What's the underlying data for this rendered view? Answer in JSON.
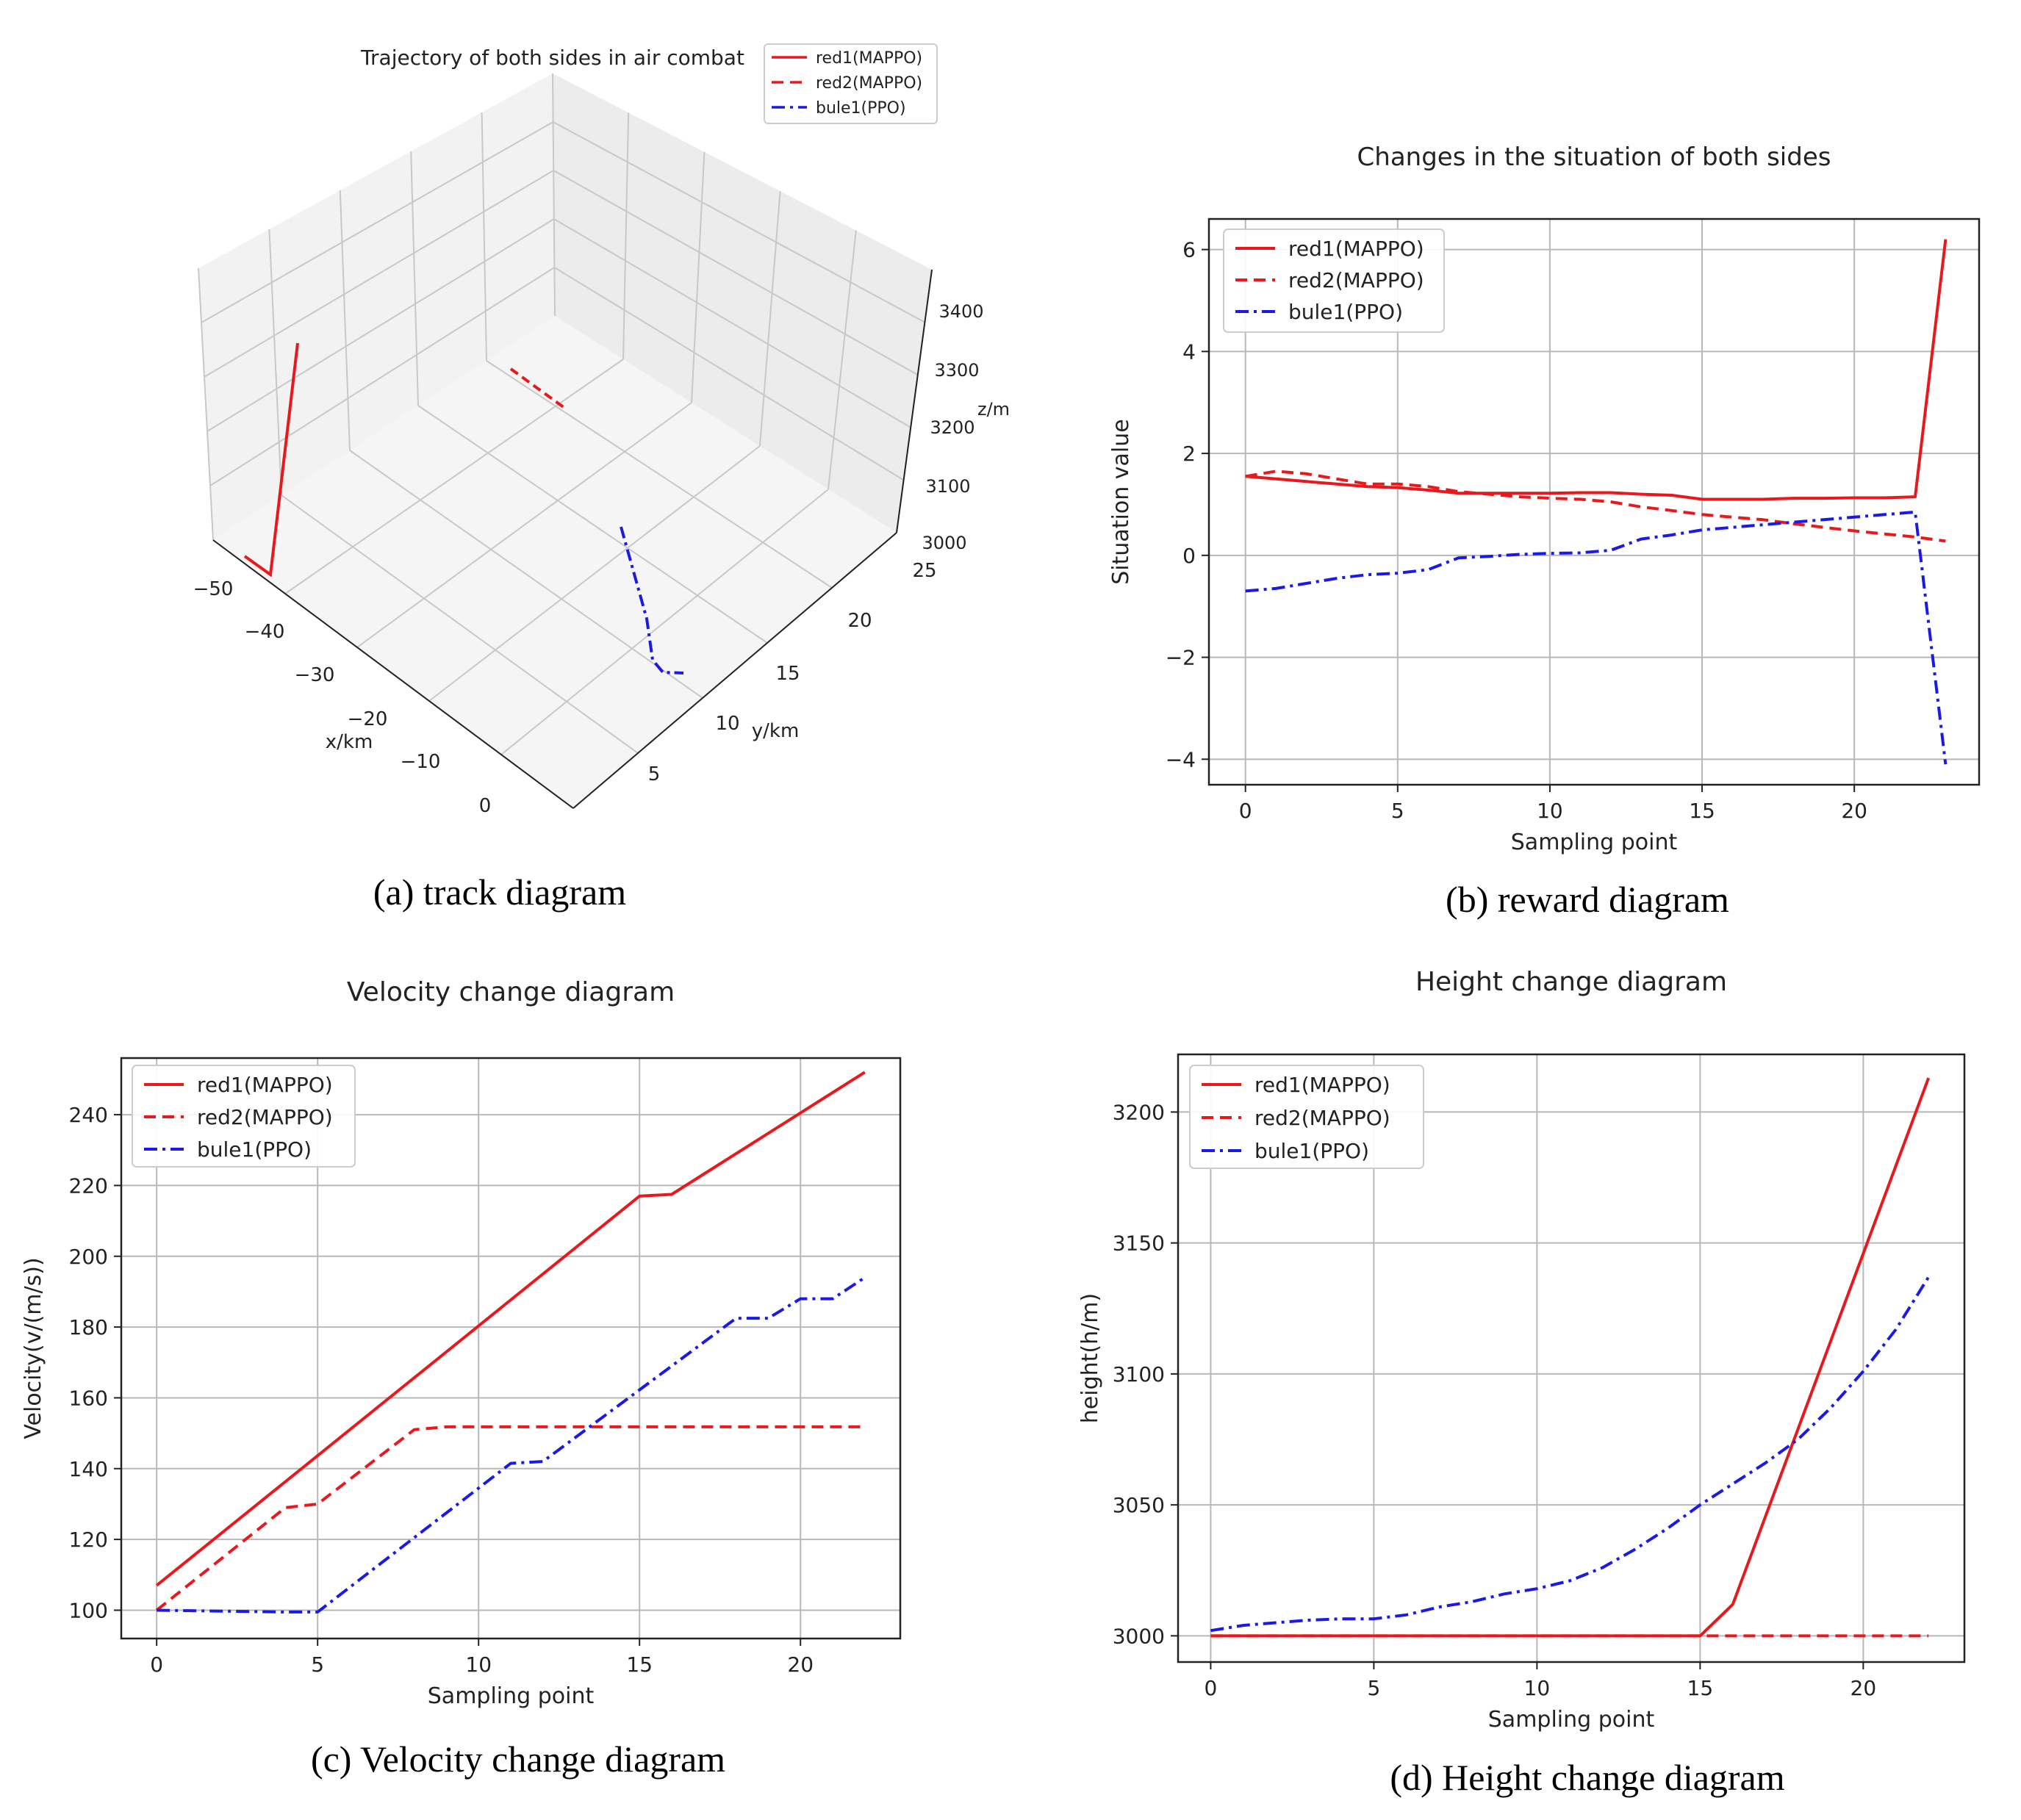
{
  "captions": {
    "a": "(a) track diagram",
    "b": "(b) reward diagram",
    "c": "(c) Velocity change diagram",
    "d": "(d) Height change diagram"
  },
  "colors": {
    "red": "#e8191c",
    "blue": "#1a1ae6",
    "grid": "#b8b8b8",
    "axis": "#222222"
  },
  "chart_data": [
    {
      "id": "a",
      "type": "line",
      "projection": "3d",
      "title": "Trajectory of both sides in air combat",
      "xlabel": "x/km",
      "ylabel": "y/km",
      "zlabel": "z/m",
      "xticks": [
        "−50",
        "−40",
        "−30",
        "−20",
        "−10",
        "0"
      ],
      "yticks": [
        "5",
        "10",
        "15",
        "20",
        "25"
      ],
      "zticks": [
        "3000",
        "3100",
        "3200",
        "3300",
        "3400"
      ],
      "legend": [
        "red1(MAPPO)",
        "red2(MAPPO)",
        "bule1(PPO)"
      ]
    },
    {
      "id": "b",
      "type": "line",
      "title": "Changes in the situation of both sides",
      "xlabel": "Sampling point",
      "ylabel": "Situation value",
      "xlim": [
        -1.2,
        24.1
      ],
      "ylim": [
        -4.5,
        6.6
      ],
      "xticks": [
        0,
        5,
        10,
        15,
        20
      ],
      "yticks": [
        -4,
        -2,
        0,
        2,
        4,
        6
      ],
      "legend_position": "upper-left",
      "series": [
        {
          "name": "red1(MAPPO)",
          "style": "solid",
          "color": "#e8191c",
          "x": [
            0,
            1,
            2,
            3,
            4,
            5,
            6,
            7,
            8,
            9,
            10,
            11,
            12,
            13,
            14,
            15,
            16,
            17,
            18,
            19,
            20,
            21,
            22,
            23
          ],
          "y": [
            1.55,
            1.5,
            1.45,
            1.4,
            1.35,
            1.33,
            1.28,
            1.22,
            1.22,
            1.22,
            1.22,
            1.23,
            1.23,
            1.2,
            1.18,
            1.1,
            1.1,
            1.1,
            1.12,
            1.12,
            1.13,
            1.13,
            1.15,
            6.2
          ]
        },
        {
          "name": "red2(MAPPO)",
          "style": "dashed",
          "color": "#e8191c",
          "x": [
            0,
            1,
            2,
            3,
            4,
            5,
            6,
            7,
            8,
            9,
            10,
            11,
            12,
            13,
            14,
            15,
            16,
            17,
            18,
            19,
            20,
            21,
            22,
            23
          ],
          "y": [
            1.55,
            1.65,
            1.6,
            1.5,
            1.4,
            1.4,
            1.35,
            1.25,
            1.2,
            1.15,
            1.12,
            1.1,
            1.05,
            0.95,
            0.88,
            0.8,
            0.75,
            0.7,
            0.62,
            0.55,
            0.48,
            0.42,
            0.36,
            0.28
          ]
        },
        {
          "name": "bule1(PPO)",
          "style": "dashdot",
          "color": "#1a1ae6",
          "x": [
            0,
            1,
            2,
            3,
            4,
            5,
            6,
            7,
            8,
            9,
            10,
            11,
            12,
            13,
            14,
            15,
            16,
            17,
            18,
            19,
            20,
            21,
            22,
            23
          ],
          "y": [
            -0.7,
            -0.65,
            -0.55,
            -0.45,
            -0.38,
            -0.35,
            -0.28,
            -0.05,
            -0.02,
            0.02,
            0.04,
            0.05,
            0.1,
            0.32,
            0.4,
            0.5,
            0.55,
            0.6,
            0.65,
            0.7,
            0.75,
            0.8,
            0.85,
            -4.1
          ]
        }
      ]
    },
    {
      "id": "c",
      "type": "line",
      "title": "Velocity change diagram",
      "xlabel": "Sampling point",
      "ylabel": "Velocity(v/(m/s))",
      "xlim": [
        -1.1,
        23.1
      ],
      "ylim": [
        92,
        256
      ],
      "xticks": [
        0,
        5,
        10,
        15,
        20
      ],
      "yticks": [
        100,
        120,
        140,
        160,
        180,
        200,
        220,
        240
      ],
      "legend_position": "upper-left",
      "series": [
        {
          "name": "red1(MAPPO)",
          "style": "solid",
          "color": "#e8191c",
          "x": [
            0,
            15,
            16,
            22
          ],
          "y": [
            107,
            217,
            217.5,
            252
          ]
        },
        {
          "name": "red2(MAPPO)",
          "style": "dashed",
          "color": "#e8191c",
          "x": [
            0,
            4,
            5,
            8,
            9,
            22
          ],
          "y": [
            100,
            129,
            130,
            151,
            151.8,
            151.8
          ]
        },
        {
          "name": "bule1(PPO)",
          "style": "dashdot",
          "color": "#1a1ae6",
          "x": [
            0,
            4,
            5,
            11,
            12,
            18,
            19,
            20,
            21,
            22
          ],
          "y": [
            100,
            99.5,
            99.5,
            141.5,
            142,
            182.5,
            182.5,
            188,
            188,
            194
          ]
        }
      ]
    },
    {
      "id": "d",
      "type": "line",
      "title": "Height change diagram",
      "xlabel": "Sampling point",
      "ylabel": "height(h/m)",
      "xlim": [
        -1.0,
        23.1
      ],
      "ylim": [
        2990,
        3222
      ],
      "xticks": [
        0,
        5,
        10,
        15,
        20
      ],
      "yticks": [
        3000,
        3050,
        3100,
        3150,
        3200
      ],
      "legend_position": "upper-left",
      "series": [
        {
          "name": "red1(MAPPO)",
          "style": "solid",
          "color": "#e8191c",
          "x": [
            0,
            15,
            16,
            22
          ],
          "y": [
            3000,
            3000,
            3012,
            3213
          ]
        },
        {
          "name": "red2(MAPPO)",
          "style": "dashed",
          "color": "#e8191c",
          "x": [
            0,
            22
          ],
          "y": [
            3000,
            3000
          ]
        },
        {
          "name": "bule1(PPO)",
          "style": "dashdot",
          "color": "#1a1ae6",
          "x": [
            0,
            1,
            2,
            3,
            4,
            5,
            6,
            7,
            8,
            9,
            10,
            11,
            12,
            13,
            14,
            15,
            16,
            17,
            18,
            19,
            20,
            21,
            22
          ],
          "y": [
            3002,
            3004,
            3005,
            3006,
            3006.5,
            3006.5,
            3008,
            3011,
            3013,
            3016,
            3018,
            3021,
            3026,
            3033,
            3041,
            3050,
            3058,
            3066,
            3075,
            3087,
            3101,
            3117,
            3137
          ]
        }
      ]
    }
  ]
}
